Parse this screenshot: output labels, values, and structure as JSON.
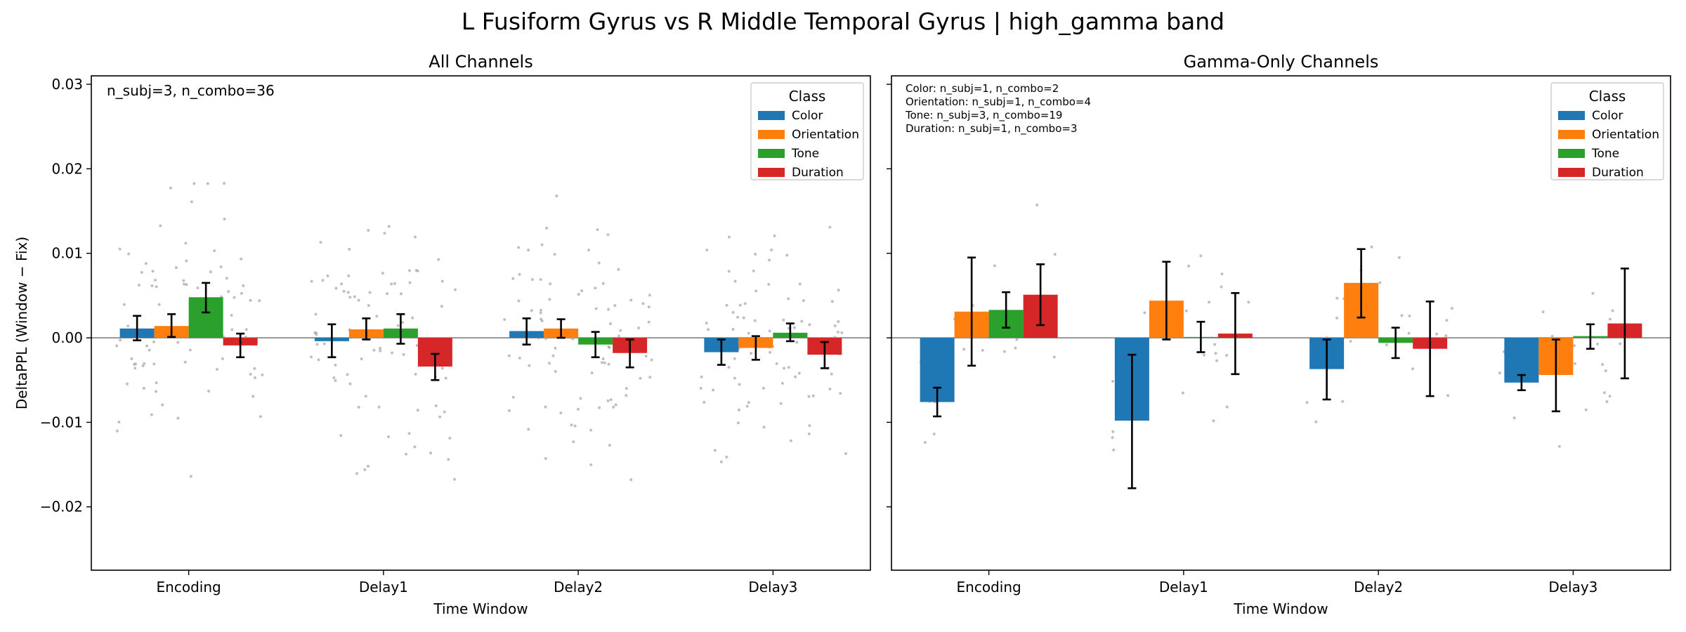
{
  "suptitle": "L Fusiform Gyrus vs R Middle Temporal Gyrus  |  high_gamma band",
  "legend_title": "Class",
  "colors": {
    "Color": "#1f77b4",
    "Orientation": "#ff7f0e",
    "Tone": "#2ca02c",
    "Duration": "#d62728",
    "points": "#aaaaaa",
    "zero_line": "#808080"
  },
  "chart_data": [
    {
      "type": "bar",
      "title": "All Channels",
      "xlabel": "Time Window",
      "ylabel": "DeltaPPL (Window − Fix)",
      "ylim": [
        -0.0275,
        0.031
      ],
      "yticks": [
        -0.02,
        -0.01,
        0.0,
        0.01,
        0.02,
        0.03
      ],
      "ytick_labels": [
        "−0.02",
        "−0.01",
        "0.00",
        "0.01",
        "0.02",
        "0.03"
      ],
      "categories": [
        "Encoding",
        "Delay1",
        "Delay2",
        "Delay3"
      ],
      "legend_position": "top-right",
      "annotation": [
        "n_subj=3, n_combo=36"
      ],
      "series": [
        {
          "name": "Color",
          "values": [
            0.0011,
            -0.0004,
            0.0008,
            -0.0017
          ],
          "err_low": [
            -0.0003,
            -0.0023,
            -0.0008,
            -0.0032
          ],
          "err_high": [
            0.0026,
            0.0016,
            0.0023,
            -0.0002
          ]
        },
        {
          "name": "Orientation",
          "values": [
            0.0014,
            0.001,
            0.0011,
            -0.0012
          ],
          "err_low": [
            0.0001,
            -0.0002,
            0.0,
            -0.0026
          ],
          "err_high": [
            0.0028,
            0.0023,
            0.0022,
            0.0002
          ]
        },
        {
          "name": "Tone",
          "values": [
            0.0048,
            0.0011,
            -0.0008,
            0.0006
          ],
          "err_low": [
            0.003,
            -0.0007,
            -0.0023,
            -0.0004
          ],
          "err_high": [
            0.0065,
            0.0028,
            0.0007,
            0.0017
          ]
        },
        {
          "name": "Duration",
          "values": [
            -0.0009,
            -0.0034,
            -0.0018,
            -0.002
          ],
          "err_low": [
            -0.0023,
            -0.005,
            -0.0035,
            -0.0036
          ],
          "err_high": [
            0.0005,
            -0.0019,
            -0.0002,
            -0.0005
          ]
        }
      ]
    },
    {
      "type": "bar",
      "title": "Gamma-Only Channels",
      "xlabel": "Time Window",
      "ylabel": "",
      "ylim": [
        -0.0275,
        0.031
      ],
      "yticks": [
        -0.02,
        -0.01,
        0.0,
        0.01,
        0.02,
        0.03
      ],
      "categories": [
        "Encoding",
        "Delay1",
        "Delay2",
        "Delay3"
      ],
      "legend_position": "top-right",
      "annotation": [
        "Color: n_subj=1, n_combo=2",
        "Orientation: n_subj=1, n_combo=4",
        "Tone: n_subj=3, n_combo=19",
        "Duration: n_subj=1, n_combo=3"
      ],
      "series": [
        {
          "name": "Color",
          "values": [
            -0.0076,
            -0.0098,
            -0.0037,
            -0.0053
          ],
          "err_low": [
            -0.0093,
            -0.0178,
            -0.0073,
            -0.0062
          ],
          "err_high": [
            -0.0059,
            -0.002,
            -0.0002,
            -0.0044
          ]
        },
        {
          "name": "Orientation",
          "values": [
            0.0031,
            0.0044,
            0.0065,
            -0.0044
          ],
          "err_low": [
            -0.0033,
            -0.0002,
            0.0024,
            -0.0087
          ],
          "err_high": [
            0.0095,
            0.009,
            0.0105,
            -0.0002
          ]
        },
        {
          "name": "Tone",
          "values": [
            0.0033,
            0.0001,
            -0.0006,
            0.0002
          ],
          "err_low": [
            0.0012,
            -0.0017,
            -0.0024,
            -0.0013
          ],
          "err_high": [
            0.0054,
            0.0019,
            0.0012,
            0.0016
          ]
        },
        {
          "name": "Duration",
          "values": [
            0.0051,
            0.0005,
            -0.0013,
            0.0017
          ],
          "err_low": [
            0.0015,
            -0.0043,
            -0.0069,
            -0.0048
          ],
          "err_high": [
            0.0087,
            0.0053,
            0.0043,
            0.0082
          ]
        }
      ]
    }
  ]
}
